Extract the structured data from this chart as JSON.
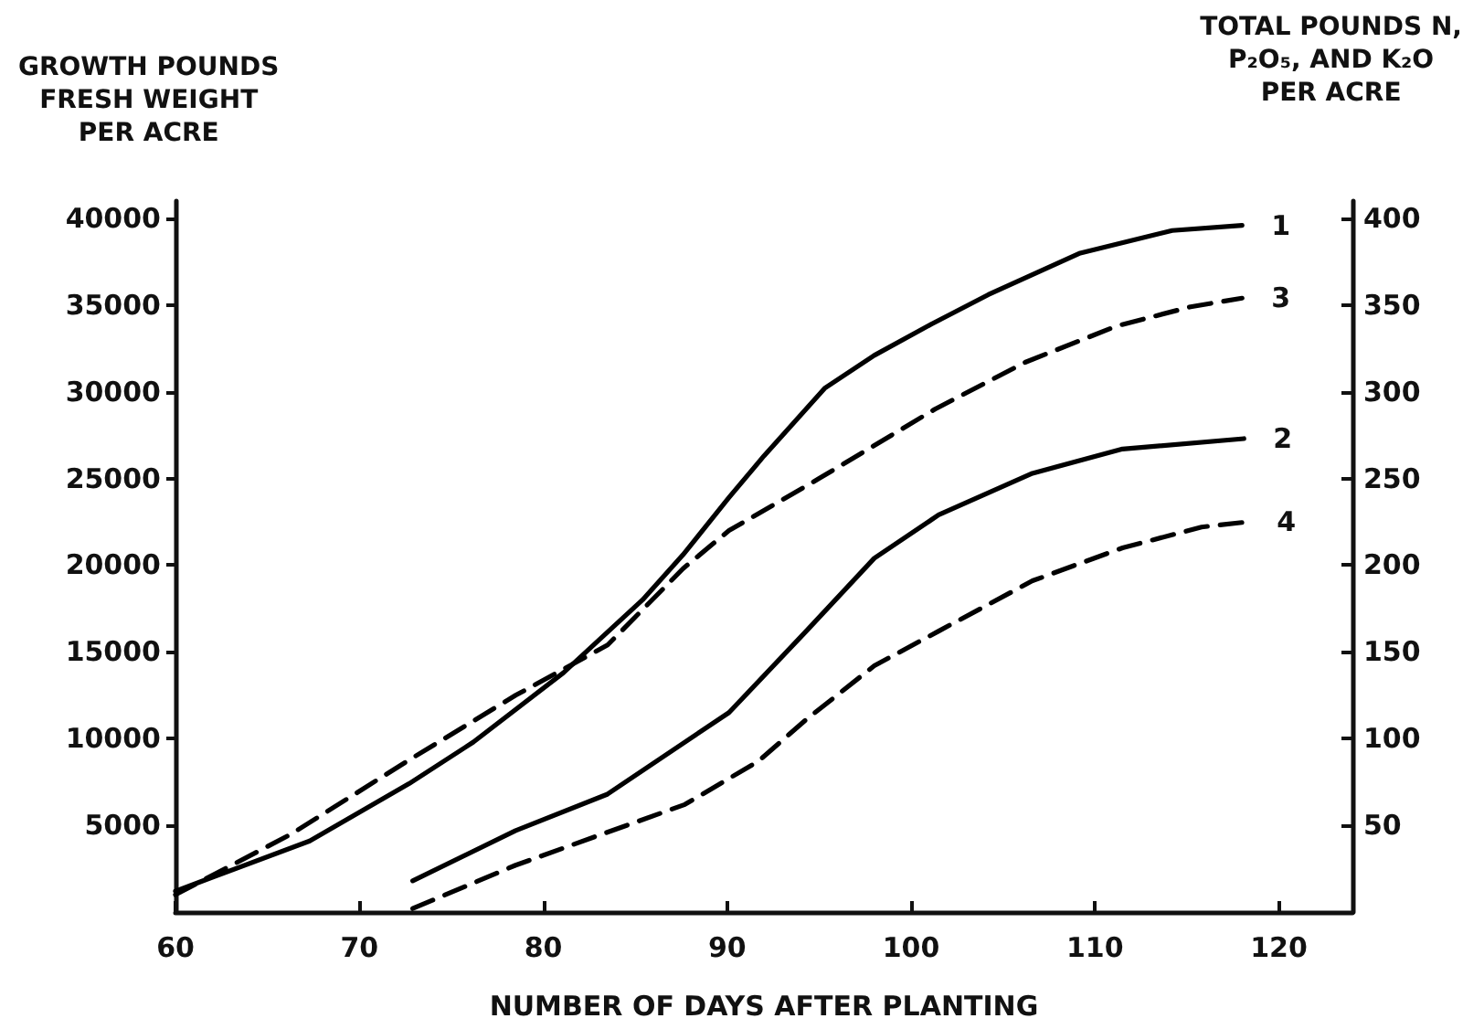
{
  "chart_data": {
    "type": "line",
    "xlabel": "NUMBER OF DAYS AFTER PLANTING",
    "ylabel": "GROWTH POUNDS\nFRESH WEIGHT\nPER ACRE",
    "y2label": "TOTAL POUNDS N,\nP₂O₅, AND K₂O\nPER ACRE",
    "xlim": [
      60,
      124
    ],
    "xticks": [
      60,
      70,
      80,
      90,
      100,
      110,
      120
    ],
    "ylim": [
      0,
      41000
    ],
    "yticks": [
      5000,
      10000,
      15000,
      20000,
      25000,
      30000,
      35000,
      40000
    ],
    "y2lim": [
      0,
      410
    ],
    "y2ticks": [
      50,
      100,
      150,
      200,
      250,
      300,
      350,
      400
    ],
    "grid": false,
    "legend": false,
    "series": [
      {
        "name": "1",
        "color": "#000000",
        "line_style": "solid",
        "x": [
          60,
          62,
          67.3,
          72.7,
          76.2,
          81.1,
          85.4,
          87.6,
          90.1,
          92,
          95.3,
          98,
          101.1,
          104.2,
          109.2,
          114.2,
          118
        ],
        "values": [
          1200,
          2000,
          4100,
          7400,
          9800,
          13800,
          18000,
          20600,
          23900,
          26300,
          30200,
          32100,
          33900,
          35600,
          38000,
          39300,
          39600
        ]
      },
      {
        "name": "3",
        "color": "#000000",
        "line_style": "dashed",
        "axis": "y2",
        "x": [
          60,
          66.3,
          72.6,
          78.5,
          83.5,
          87.6,
          90.1,
          95,
          101.3,
          106.2,
          111.2,
          115.2,
          118
        ],
        "values": [
          10,
          45,
          87,
          125,
          154,
          198,
          220,
          250,
          290,
          317,
          338,
          349,
          354
        ]
      },
      {
        "name": "2",
        "color": "#000000",
        "line_style": "solid",
        "x": [
          72.9,
          78.5,
          83.5,
          87.7,
          90.1,
          94.3,
          98,
          101.5,
          106.6,
          111.5,
          118.1
        ],
        "values": [
          1800,
          4700,
          6800,
          9800,
          11500,
          16200,
          20400,
          22900,
          25300,
          26700,
          27300
        ]
      },
      {
        "name": "4",
        "color": "#000000",
        "line_style": "dashed",
        "axis": "y2",
        "x": [
          72.9,
          78.5,
          87.7,
          91.7,
          94.3,
          98,
          101.5,
          106.6,
          111.5,
          115.8,
          118.3
        ],
        "values": [
          2,
          27,
          62,
          87,
          111,
          142,
          162,
          191,
          210,
          222,
          225
        ]
      }
    ]
  }
}
